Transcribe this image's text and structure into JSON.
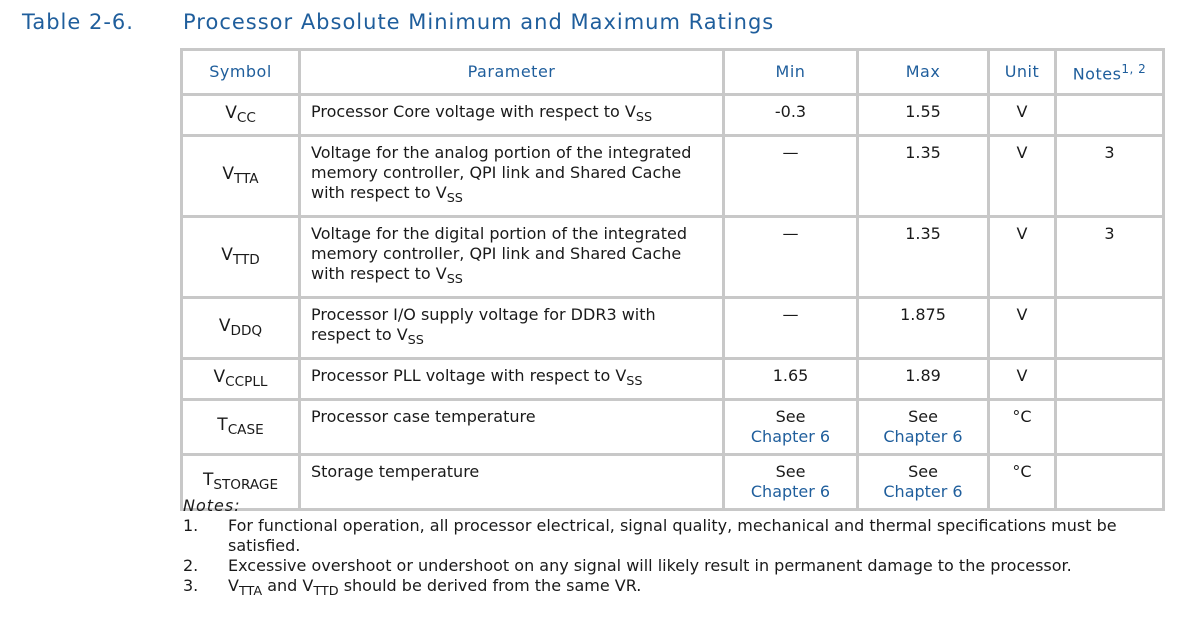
{
  "header": {
    "label": "Table 2-6.",
    "title": "Processor Absolute Minimum and Maximum Ratings"
  },
  "table": {
    "columns": [
      [
        {
          "t": "Symbol"
        }
      ],
      [
        {
          "t": "Parameter"
        }
      ],
      [
        {
          "t": "Min"
        }
      ],
      [
        {
          "t": "Max"
        }
      ],
      [
        {
          "t": "Unit"
        }
      ],
      [
        {
          "t": "Notes"
        },
        {
          "sup": "1, 2"
        }
      ]
    ],
    "rows": [
      [
        [
          {
            "t": "V"
          },
          {
            "sub": "CC"
          }
        ],
        [
          {
            "t": "Processor Core voltage with respect to V"
          },
          {
            "sub": "SS"
          }
        ],
        [
          {
            "t": "-0.3"
          }
        ],
        [
          {
            "t": "1.55"
          }
        ],
        [
          {
            "t": "V"
          }
        ],
        []
      ],
      [
        [
          {
            "t": "V"
          },
          {
            "sub": "TTA"
          }
        ],
        [
          {
            "t": "Voltage for the analog portion of the integrated memory controller, QPI link and Shared Cache with respect to V"
          },
          {
            "sub": "SS"
          }
        ],
        [
          {
            "t": "—"
          }
        ],
        [
          {
            "t": "1.35"
          }
        ],
        [
          {
            "t": "V"
          }
        ],
        [
          {
            "t": "3"
          }
        ]
      ],
      [
        [
          {
            "t": "V"
          },
          {
            "sub": "TTD"
          }
        ],
        [
          {
            "t": "Voltage for the digital portion of the integrated memory controller, QPI link and Shared Cache with respect to V"
          },
          {
            "sub": "SS"
          }
        ],
        [
          {
            "t": "—"
          }
        ],
        [
          {
            "t": "1.35"
          }
        ],
        [
          {
            "t": "V"
          }
        ],
        [
          {
            "t": "3"
          }
        ]
      ],
      [
        [
          {
            "t": "V"
          },
          {
            "sub": "DDQ"
          }
        ],
        [
          {
            "t": "Processor I/O supply voltage for DDR3 with respect to V"
          },
          {
            "sub": "SS"
          }
        ],
        [
          {
            "t": "—"
          }
        ],
        [
          {
            "t": "1.875"
          }
        ],
        [
          {
            "t": "V"
          }
        ],
        []
      ],
      [
        [
          {
            "t": "V"
          },
          {
            "sub": "CCPLL"
          }
        ],
        [
          {
            "t": "Processor PLL voltage with respect to V"
          },
          {
            "sub": "SS"
          }
        ],
        [
          {
            "t": "1.65"
          }
        ],
        [
          {
            "t": "1.89"
          }
        ],
        [
          {
            "t": "V"
          }
        ],
        []
      ],
      [
        [
          {
            "t": "T"
          },
          {
            "sub": "CASE"
          }
        ],
        [
          {
            "t": "Processor case temperature"
          }
        ],
        [
          {
            "t": "See"
          },
          {
            "link": "Chapter 6"
          }
        ],
        [
          {
            "t": "See"
          },
          {
            "link": "Chapter 6"
          }
        ],
        [
          {
            "t": "°C"
          }
        ],
        []
      ],
      [
        [
          {
            "t": "T"
          },
          {
            "sub": "STORAGE"
          }
        ],
        [
          {
            "t": "Storage temperature"
          }
        ],
        [
          {
            "t": "See"
          },
          {
            "link": "Chapter 6"
          }
        ],
        [
          {
            "t": "See"
          },
          {
            "link": "Chapter 6"
          }
        ],
        [
          {
            "t": "°C"
          }
        ],
        []
      ]
    ]
  },
  "notes": {
    "label": "Notes:",
    "items": [
      {
        "number": "1.",
        "text": [
          {
            "t": "For functional operation, all processor electrical, signal quality, mechanical and thermal specifications must be satisfied."
          }
        ]
      },
      {
        "number": "2.",
        "text": [
          {
            "t": "Excessive overshoot or undershoot on any signal will likely result in permanent damage to the processor."
          }
        ]
      },
      {
        "number": "3.",
        "text": [
          {
            "t": "V"
          },
          {
            "sub": "TTA"
          },
          {
            "t": " and V"
          },
          {
            "sub": "TTD"
          },
          {
            "t": " should be derived from the same VR."
          }
        ]
      }
    ]
  }
}
